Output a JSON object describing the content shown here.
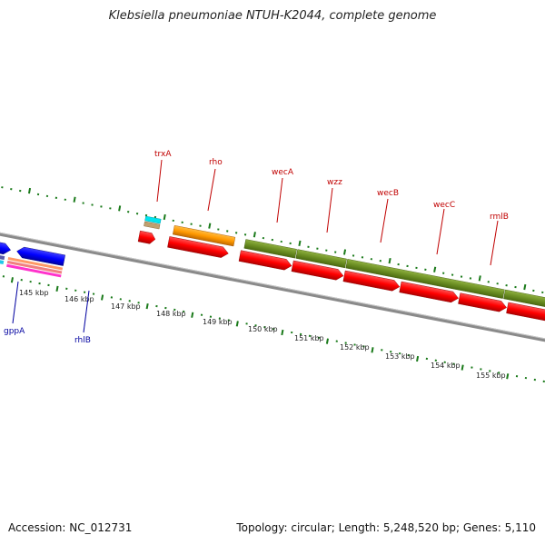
{
  "title": "Klebsiella pneumoniae NTUH-K2044, complete genome",
  "footer": {
    "accession": "Accession: NC_012731",
    "topology": "Topology: circular; Length: 5,248,520 bp; Genes: 5,110"
  },
  "kbp_labels": [
    "145 kbp",
    "146 kbp",
    "147 kbp",
    "148 kbp",
    "149 kbp",
    "150 kbp",
    "151 kbp",
    "152 kbp",
    "153 kbp",
    "154 kbp",
    "155 kbp"
  ],
  "gene_labels_top": [
    "trxA",
    "rho",
    "wecA",
    "wzz",
    "wecB",
    "wecC",
    "rmlB"
  ],
  "gene_labels_bottom": [
    "gppA",
    "rhlB"
  ],
  "colors": {
    "forward_gene": "#ff0000",
    "reverse_gene": "#0000ff",
    "wec_cluster": "#6b8e23",
    "rho": "#ff9900",
    "tick": "#1a7a1a",
    "label_top": "#c00000",
    "label_bottom": "#0000a0",
    "backbone": "#8a8a8a"
  }
}
